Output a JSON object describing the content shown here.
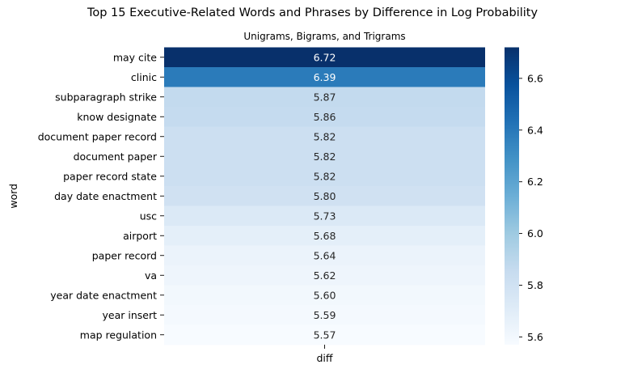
{
  "chart_data": {
    "type": "heatmap",
    "title": "Top 15 Executive-Related Words and Phrases by Difference in Log Probability",
    "subtitle": "Unigrams, Bigrams, and Trigrams",
    "ylabel": "word",
    "columns": [
      "diff"
    ],
    "rows": [
      "may cite",
      "clinic",
      "subparagraph strike",
      "know designate",
      "document paper record",
      "document paper",
      "paper record state",
      "day date enactment",
      "usc",
      "airport",
      "paper record",
      "va",
      "year date enactment",
      "year insert",
      "map regulation"
    ],
    "values": [
      6.72,
      6.39,
      5.87,
      5.86,
      5.82,
      5.82,
      5.82,
      5.8,
      5.73,
      5.68,
      5.64,
      5.62,
      5.6,
      5.59,
      5.57
    ],
    "labels": [
      "6.72",
      "6.39",
      "5.87",
      "5.86",
      "5.82",
      "5.82",
      "5.82",
      "5.80",
      "5.73",
      "5.68",
      "5.64",
      "5.62",
      "5.60",
      "5.59",
      "5.57"
    ],
    "colormap": "Blues",
    "colorbar": {
      "range": [
        5.57,
        6.72
      ],
      "ticks": [
        5.6,
        5.8,
        6.0,
        6.2,
        6.4,
        6.6
      ],
      "tick_labels": [
        "5.6",
        "5.8",
        "6.0",
        "6.2",
        "6.4",
        "6.6"
      ]
    },
    "grid": false
  }
}
